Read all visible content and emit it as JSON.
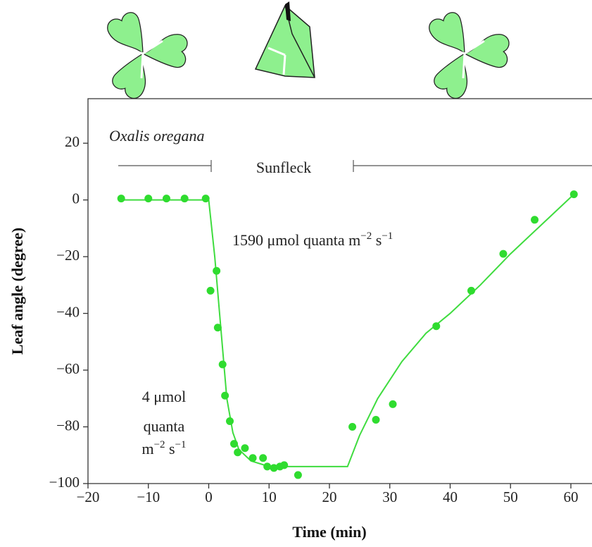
{
  "chart_data": {
    "type": "scatter",
    "x_label": "Time (min)",
    "y_label": "Leaf angle (degree)",
    "xlim": [
      -20,
      63.5
    ],
    "ylim": [
      -100,
      35.7
    ],
    "xticks": [
      {
        "value": -20,
        "label": "−20"
      },
      {
        "value": -10,
        "label": "−10"
      },
      0,
      10,
      20,
      30,
      40,
      50,
      60
    ],
    "yticks": [
      {
        "value": -100,
        "label": "−100"
      },
      {
        "value": -80,
        "label": "−80"
      },
      {
        "value": -60,
        "label": "−60"
      },
      {
        "value": -40,
        "label": "−40"
      },
      {
        "value": -20,
        "label": "−20"
      },
      0,
      20
    ],
    "color": "#2fdc2f",
    "line_color": "#3fdc3f",
    "points": {
      "x": [
        -14.5,
        -10,
        -7,
        -4,
        -0.5,
        0.3,
        1.3,
        1.5,
        2.3,
        2.7,
        3.5,
        4.2,
        4.8,
        6,
        7.3,
        9,
        9.7,
        10.8,
        11.8,
        12.5,
        14.8,
        23.8,
        27.7,
        30.5,
        37.7,
        43.5,
        48.8,
        54,
        60.5
      ],
      "y": [
        0.5,
        0.5,
        0.5,
        0.5,
        0.5,
        -32,
        -25,
        -45,
        -58,
        -69,
        -78,
        -86,
        -89,
        -87.5,
        -91,
        -91,
        -94,
        -94.5,
        -94,
        -93.5,
        -97,
        -80,
        -77.5,
        -72,
        -44.5,
        -32,
        -19,
        -7,
        2
      ]
    },
    "fit": {
      "x": [
        -15,
        0,
        1,
        2,
        3,
        4,
        5,
        7,
        10,
        15,
        20,
        23,
        25,
        28,
        32,
        36,
        40,
        45,
        50,
        55,
        60.5
      ],
      "y": [
        0,
        0,
        -20,
        -45,
        -70,
        -82,
        -88,
        -92,
        -94,
        -94,
        -94,
        -94,
        -83,
        -70,
        -57,
        -47,
        -40,
        -30,
        -19,
        -9,
        2
      ]
    },
    "annotations": {
      "species": "Oxalis oregana",
      "sunfleck": "Sunfleck",
      "high": [
        "1590 μmol quanta m",
        "−2",
        " s",
        "−1"
      ],
      "low_1": "4 μmol",
      "low_2": "quanta",
      "low_3": [
        "m",
        "−2",
        " s",
        "−1"
      ]
    }
  }
}
